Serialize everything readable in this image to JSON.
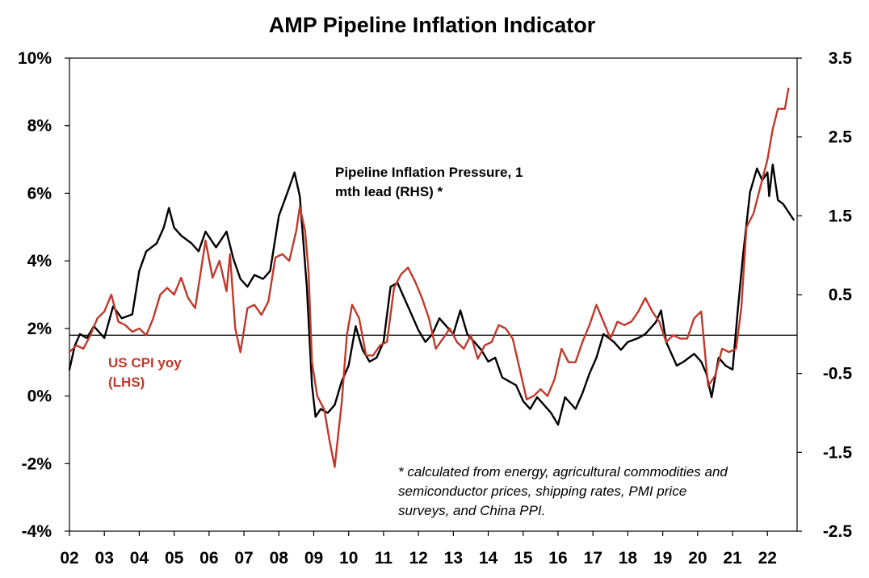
{
  "chart_data": {
    "type": "line",
    "title": "AMP Pipeline Inflation Indicator",
    "left_axis": {
      "ticks": [
        "10%",
        "8%",
        "6%",
        "4%",
        "2%",
        "0%",
        "-2%",
        "-4%"
      ],
      "values": [
        10,
        8,
        6,
        4,
        2,
        0,
        -2,
        -4
      ],
      "ylim": [
        -4,
        10
      ]
    },
    "right_axis": {
      "ticks": [
        "3.5",
        "2.5",
        "1.5",
        "0.5",
        "-0.5",
        "-1.5",
        "-2.5"
      ],
      "values": [
        3.5,
        2.5,
        1.5,
        0.5,
        -0.5,
        -1.5,
        -2.5
      ],
      "ylim": [
        -2.5,
        3.5
      ]
    },
    "x_axis": {
      "ticks": [
        "02",
        "03",
        "04",
        "05",
        "06",
        "07",
        "08",
        "09",
        "10",
        "11",
        "12",
        "13",
        "14",
        "15",
        "16",
        "17",
        "18",
        "19",
        "20",
        "21",
        "22"
      ],
      "xlim": [
        2002,
        2022.85
      ]
    },
    "reference_line": {
      "axis": "left",
      "value": 1.8
    },
    "series": [
      {
        "name": "Pipeline Inflation Pressure, 1 mth lead (RHS) *",
        "label_lines": [
          "Pipeline Inflation Pressure, 1",
          "mth lead (RHS) *"
        ],
        "axis": "right",
        "color": "#000000",
        "x": [
          2002.0,
          2002.15,
          2002.3,
          2002.5,
          2002.7,
          2003.0,
          2003.25,
          2003.5,
          2003.8,
          2004.0,
          2004.2,
          2004.5,
          2004.7,
          2004.85,
          2005.0,
          2005.2,
          2005.5,
          2005.7,
          2005.9,
          2006.2,
          2006.5,
          2006.7,
          2006.9,
          2007.1,
          2007.3,
          2007.55,
          2007.75,
          2008.0,
          2008.25,
          2008.45,
          2008.6,
          2008.8,
          2008.95,
          2009.05,
          2009.2,
          2009.4,
          2009.6,
          2009.8,
          2010.0,
          2010.2,
          2010.4,
          2010.6,
          2010.8,
          2011.0,
          2011.2,
          2011.4,
          2011.6,
          2011.8,
          2012.0,
          2012.2,
          2012.4,
          2012.6,
          2012.8,
          2013.0,
          2013.2,
          2013.4,
          2013.6,
          2013.8,
          2014.0,
          2014.2,
          2014.4,
          2014.6,
          2014.8,
          2015.0,
          2015.2,
          2015.4,
          2015.6,
          2015.8,
          2016.0,
          2016.2,
          2016.5,
          2016.7,
          2016.9,
          2017.1,
          2017.3,
          2017.6,
          2017.8,
          2018.0,
          2018.3,
          2018.5,
          2018.8,
          2018.95,
          2019.1,
          2019.4,
          2019.6,
          2019.9,
          2020.1,
          2020.25,
          2020.4,
          2020.6,
          2020.8,
          2021.0,
          2021.15,
          2021.3,
          2021.5,
          2021.7,
          2021.85,
          2022.0,
          2022.05,
          2022.15,
          2022.3,
          2022.45,
          2022.6,
          2022.75
        ],
        "y": [
          -0.45,
          -0.15,
          0.0,
          -0.05,
          0.1,
          -0.05,
          0.35,
          0.2,
          0.25,
          0.8,
          1.05,
          1.15,
          1.35,
          1.6,
          1.35,
          1.25,
          1.15,
          1.05,
          1.3,
          1.1,
          1.3,
          0.95,
          0.7,
          0.6,
          0.75,
          0.7,
          0.8,
          1.5,
          1.8,
          2.05,
          1.75,
          0.6,
          -0.65,
          -1.05,
          -0.95,
          -1.0,
          -0.9,
          -0.6,
          -0.4,
          0.1,
          -0.2,
          -0.35,
          -0.3,
          -0.1,
          0.6,
          0.65,
          0.45,
          0.25,
          0.05,
          -0.1,
          0.0,
          0.2,
          0.1,
          0.0,
          0.3,
          0.0,
          -0.1,
          -0.2,
          -0.35,
          -0.3,
          -0.55,
          -0.6,
          -0.65,
          -0.85,
          -0.95,
          -0.8,
          -0.9,
          -1.0,
          -1.15,
          -0.8,
          -0.95,
          -0.75,
          -0.5,
          -0.3,
          0.0,
          -0.1,
          -0.2,
          -0.1,
          -0.05,
          0.0,
          0.15,
          0.3,
          -0.1,
          -0.4,
          -0.35,
          -0.25,
          -0.35,
          -0.5,
          -0.8,
          -0.3,
          -0.4,
          -0.45,
          0.3,
          1.0,
          1.8,
          2.1,
          1.95,
          2.05,
          1.75,
          2.15,
          1.7,
          1.65,
          1.55,
          1.45
        ]
      },
      {
        "name": "US CPI yoy (LHS)",
        "label_lines": [
          "US CPI yoy",
          "(LHS)"
        ],
        "axis": "left",
        "color": "#c0392b",
        "x": [
          2002.0,
          2002.2,
          2002.4,
          2002.6,
          2002.8,
          2003.0,
          2003.2,
          2003.4,
          2003.6,
          2003.8,
          2004.0,
          2004.2,
          2004.4,
          2004.6,
          2004.8,
          2005.0,
          2005.2,
          2005.4,
          2005.6,
          2005.75,
          2005.9,
          2006.1,
          2006.3,
          2006.5,
          2006.6,
          2006.75,
          2006.9,
          2007.1,
          2007.3,
          2007.5,
          2007.7,
          2007.9,
          2008.1,
          2008.3,
          2008.5,
          2008.6,
          2008.75,
          2008.85,
          2008.95,
          2009.1,
          2009.3,
          2009.45,
          2009.6,
          2009.8,
          2009.95,
          2010.1,
          2010.3,
          2010.5,
          2010.7,
          2010.9,
          2011.1,
          2011.3,
          2011.5,
          2011.7,
          2011.9,
          2012.1,
          2012.3,
          2012.5,
          2012.7,
          2012.9,
          2013.1,
          2013.3,
          2013.5,
          2013.7,
          2013.9,
          2014.1,
          2014.3,
          2014.5,
          2014.7,
          2014.9,
          2015.1,
          2015.3,
          2015.5,
          2015.7,
          2015.9,
          2016.1,
          2016.3,
          2016.5,
          2016.7,
          2016.9,
          2017.1,
          2017.3,
          2017.5,
          2017.7,
          2017.9,
          2018.1,
          2018.3,
          2018.5,
          2018.7,
          2018.9,
          2019.1,
          2019.3,
          2019.5,
          2019.7,
          2019.9,
          2020.1,
          2020.3,
          2020.5,
          2020.7,
          2020.9,
          2021.1,
          2021.25,
          2021.4,
          2021.6,
          2021.8,
          2022.0,
          2022.15,
          2022.3,
          2022.5,
          2022.6
        ],
        "y": [
          1.3,
          1.5,
          1.4,
          1.8,
          2.3,
          2.5,
          3.0,
          2.2,
          2.1,
          1.9,
          2.0,
          1.8,
          2.3,
          3.0,
          3.2,
          3.0,
          3.5,
          2.9,
          2.6,
          3.6,
          4.6,
          3.5,
          4.0,
          3.1,
          4.2,
          2.0,
          1.3,
          2.6,
          2.7,
          2.4,
          2.8,
          4.1,
          4.2,
          4.0,
          4.9,
          5.6,
          4.9,
          3.7,
          1.0,
          0.0,
          -0.4,
          -1.3,
          -2.1,
          -0.2,
          1.8,
          2.7,
          2.3,
          1.2,
          1.2,
          1.5,
          1.6,
          3.2,
          3.6,
          3.8,
          3.4,
          2.9,
          2.3,
          1.4,
          1.7,
          2.0,
          1.6,
          1.4,
          1.8,
          1.1,
          1.5,
          1.6,
          2.1,
          2.0,
          1.7,
          0.8,
          -0.1,
          0.0,
          0.2,
          0.0,
          0.5,
          1.4,
          1.0,
          1.0,
          1.6,
          2.1,
          2.7,
          2.2,
          1.7,
          2.2,
          2.1,
          2.2,
          2.5,
          2.9,
          2.5,
          2.2,
          1.6,
          1.8,
          1.7,
          1.7,
          2.3,
          2.5,
          0.3,
          0.6,
          1.4,
          1.3,
          1.4,
          2.6,
          5.0,
          5.4,
          6.2,
          7.0,
          7.9,
          8.5,
          8.5,
          9.1
        ]
      }
    ],
    "footnote": [
      "* calculated from energy, agricultural commodities and",
      "semiconductor prices, shipping rates, PMI price",
      "surveys, and China PPI."
    ],
    "grid": false,
    "legend": "inline labels"
  }
}
